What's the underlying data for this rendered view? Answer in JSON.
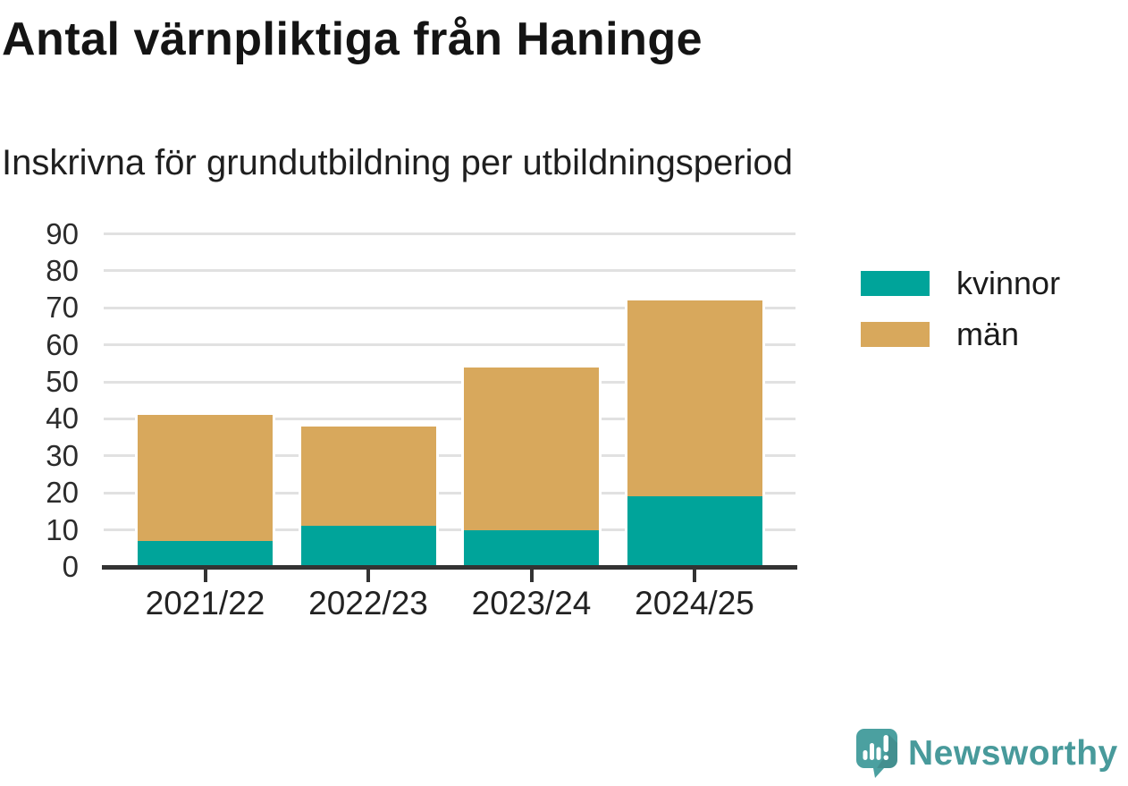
{
  "title": "Antal värnpliktiga från Haninge",
  "subtitle": "Inskrivna för grundutbildning per utbildningsperiod",
  "colors": {
    "kvinnor": "#00a49a",
    "man": "#d8a85c",
    "grid": "#e1e1e1",
    "axis": "#333333",
    "logo_teal": "#489a9b",
    "text": "#1a1a1a"
  },
  "chart_data": {
    "type": "bar",
    "stacked": true,
    "title": "Antal värnpliktiga från Haninge",
    "subtitle": "Inskrivna för grundutbildning per utbildningsperiod",
    "categories": [
      "2021/22",
      "2022/23",
      "2023/24",
      "2024/25"
    ],
    "series": [
      {
        "name": "kvinnor",
        "color": "#00a49a",
        "values": [
          7,
          11,
          10,
          19
        ]
      },
      {
        "name": "män",
        "color": "#d8a85c",
        "values": [
          34,
          27,
          44,
          53
        ]
      }
    ],
    "totals": [
      41,
      38,
      54,
      72
    ],
    "xlabel": "",
    "ylabel": "",
    "ylim": [
      0,
      90
    ],
    "yticks": [
      0,
      10,
      20,
      30,
      40,
      50,
      60,
      70,
      80,
      90
    ],
    "grid": "horizontal",
    "legend_position": "right"
  },
  "legend": {
    "items": [
      {
        "label": "kvinnor",
        "color": "#00a49a"
      },
      {
        "label": "män",
        "color": "#d8a85c"
      }
    ]
  },
  "branding": {
    "logo_text": "Newsworthy",
    "logo_icon": "newsworthy-bar-chart-bubble-icon"
  }
}
